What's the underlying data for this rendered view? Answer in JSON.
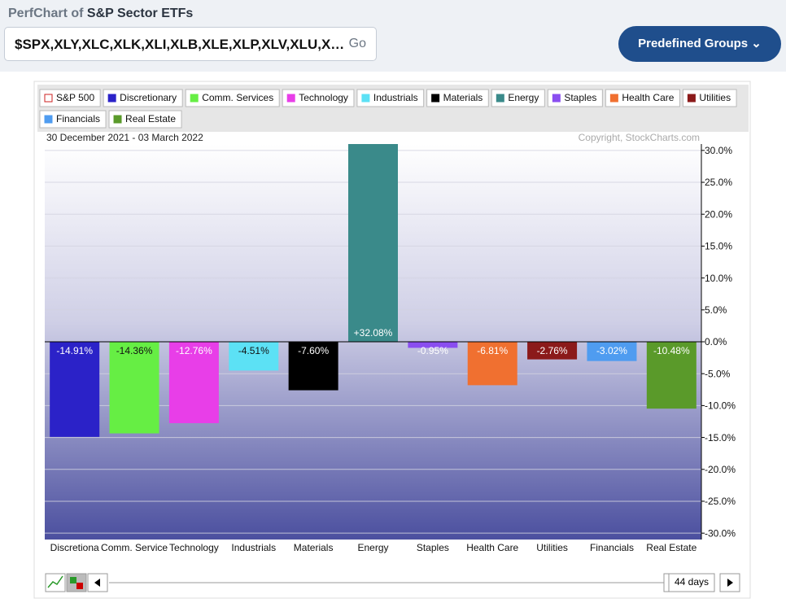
{
  "header": {
    "title_prefix": "PerfChart of",
    "title": "S&P Sector ETFs"
  },
  "search": {
    "value": "$SPX,XLY,XLC,XLK,XLI,XLB,XLE,XLP,XLV,XLU,X…",
    "button": "Go"
  },
  "predefined_button": "Predefined Groups",
  "chart_data": {
    "type": "bar",
    "date_range": "30 December 2021 - 03 March 2022",
    "copyright": "Copyright, StockCharts.com",
    "legend": [
      {
        "name": "S&P 500",
        "color": "#cc2222",
        "filled": false
      },
      {
        "name": "Discretionary",
        "color": "#2b22c8",
        "filled": true
      },
      {
        "name": "Comm. Services",
        "color": "#66ee44",
        "filled": true
      },
      {
        "name": "Technology",
        "color": "#e83ee8",
        "filled": true
      },
      {
        "name": "Industrials",
        "color": "#5ce1f5",
        "filled": true
      },
      {
        "name": "Materials",
        "color": "#000000",
        "filled": true
      },
      {
        "name": "Energy",
        "color": "#3a8a8a",
        "filled": true
      },
      {
        "name": "Staples",
        "color": "#8a4ef0",
        "filled": true
      },
      {
        "name": "Health Care",
        "color": "#f07030",
        "filled": true
      },
      {
        "name": "Utilities",
        "color": "#8b1a1a",
        "filled": true
      },
      {
        "name": "Financials",
        "color": "#4f9cf0",
        "filled": true
      },
      {
        "name": "Real Estate",
        "color": "#5a9a2a",
        "filled": true
      }
    ],
    "categories": [
      "Discretiona",
      "Comm. Service",
      "Technology",
      "Industrials",
      "Materials",
      "Energy",
      "Staples",
      "Health Care",
      "Utilities",
      "Financials",
      "Real Estate"
    ],
    "values": [
      -14.91,
      -14.36,
      -12.76,
      -4.51,
      -7.6,
      32.08,
      -0.95,
      -6.81,
      -2.76,
      -3.02,
      -10.48
    ],
    "value_labels": [
      "-14.91%",
      "-14.36%",
      "-12.76%",
      "-4.51%",
      "-7.60%",
      "+32.08%",
      "-0.95%",
      "-6.81%",
      "-2.76%",
      "-3.02%",
      "-10.48%"
    ],
    "colors": [
      "#2b22c8",
      "#66ee44",
      "#e83ee8",
      "#5ce1f5",
      "#000000",
      "#3a8a8a",
      "#8a4ef0",
      "#f07030",
      "#8b1a1a",
      "#4f9cf0",
      "#5a9a2a"
    ],
    "ylim": [
      -31,
      31
    ],
    "yticks": [
      {
        "value": 30,
        "label": "30.0%"
      },
      {
        "value": 25,
        "label": "25.0%"
      },
      {
        "value": 20,
        "label": "20.0%"
      },
      {
        "value": 15,
        "label": "15.0%"
      },
      {
        "value": 10,
        "label": "10.0%"
      },
      {
        "value": 5,
        "label": "5.0%"
      },
      {
        "value": 0,
        "label": "0.0%"
      },
      {
        "value": -5,
        "label": "-5.0%"
      },
      {
        "value": -10,
        "label": "-10.0%"
      },
      {
        "value": -15,
        "label": "-15.0%"
      },
      {
        "value": -20,
        "label": "-20.0%"
      },
      {
        "value": -25,
        "label": "-25.0%"
      },
      {
        "value": -30,
        "label": "-30.0%"
      }
    ],
    "grid": true
  },
  "controls": {
    "period": "44 days"
  }
}
